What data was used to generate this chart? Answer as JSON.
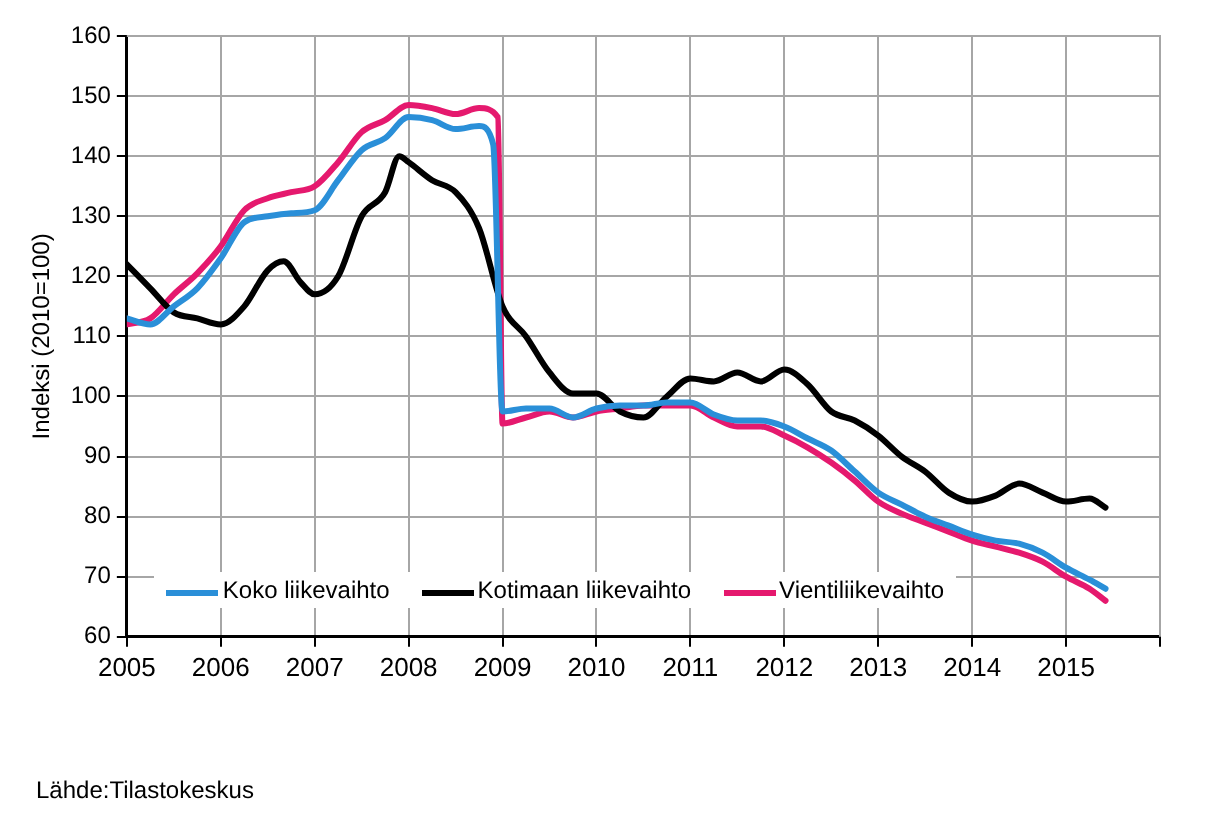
{
  "chart_data": {
    "type": "line",
    "ylabel": "Indeksi (2010=100)",
    "xlim": [
      2005,
      2016
    ],
    "xticks": [
      2005,
      2006,
      2007,
      2008,
      2009,
      2010,
      2011,
      2012,
      2013,
      2014,
      2015,
      {
        "value": 2016,
        "label": null
      }
    ],
    "ylim": [
      60,
      160
    ],
    "yticks": [
      60,
      70,
      80,
      90,
      100,
      110,
      120,
      130,
      140,
      150,
      160
    ],
    "grid": true,
    "legend": "bottom",
    "marker": "none",
    "line_style": "solid",
    "annotations": [
      "Lähde:Tilastokeskus"
    ],
    "series": [
      {
        "name": "Koko liikevaihto",
        "color": "#2a8fd8",
        "x": [
          2005,
          2005.25,
          2005.5,
          2005.75,
          2006,
          2006.25,
          2006.5,
          2006.75,
          2007,
          2007.25,
          2007.5,
          2007.75,
          2008,
          2008.25,
          2008.5,
          2008.75,
          2008.9,
          2009,
          2009.25,
          2009.5,
          2009.75,
          2010,
          2010.25,
          2010.5,
          2010.75,
          2011,
          2011.25,
          2011.5,
          2011.75,
          2012,
          2012.25,
          2012.5,
          2012.75,
          2013,
          2013.25,
          2013.5,
          2013.75,
          2014,
          2014.25,
          2014.5,
          2014.75,
          2015,
          2015.25,
          2015.42
        ],
        "values": [
          113,
          112,
          115,
          118,
          123,
          129,
          130,
          130.5,
          131,
          136,
          141,
          143,
          146.5,
          146,
          144.5,
          145,
          142,
          97.5,
          98,
          98,
          96.5,
          98,
          98.5,
          98.5,
          99,
          99,
          97,
          96,
          96,
          95,
          93,
          91,
          87.5,
          84,
          82,
          80,
          78.5,
          77,
          76,
          75.5,
          74,
          71.5,
          69.5,
          68
        ]
      },
      {
        "name": "Kotimaan liikevaihto",
        "color": "#000000",
        "x": [
          2005,
          2005.25,
          2005.5,
          2005.75,
          2006,
          2006.25,
          2006.5,
          2006.67,
          2006.85,
          2007,
          2007.25,
          2007.5,
          2007.75,
          2007.9,
          2008,
          2008.25,
          2008.5,
          2008.75,
          2009,
          2009.25,
          2009.5,
          2009.75,
          2010,
          2010.25,
          2010.5,
          2010.75,
          2011,
          2011.25,
          2011.5,
          2011.75,
          2012,
          2012.25,
          2012.5,
          2012.75,
          2013,
          2013.25,
          2013.5,
          2013.75,
          2014,
          2014.25,
          2014.5,
          2014.75,
          2015,
          2015.25,
          2015.42
        ],
        "values": [
          122,
          118,
          114,
          113,
          112,
          115,
          121,
          122.5,
          119,
          117,
          120,
          130,
          134,
          140,
          139,
          136,
          134,
          128,
          115,
          110,
          104,
          100.5,
          100.5,
          97.5,
          96.5,
          100,
          103,
          102.5,
          104,
          102.5,
          104.5,
          102,
          97.5,
          96,
          93.5,
          90,
          87.5,
          84,
          82.5,
          83.5,
          85.5,
          84,
          82.5,
          83,
          81.5
        ]
      },
      {
        "name": "Vientiliikevaihto",
        "color": "#e5196e",
        "x": [
          2005,
          2005.25,
          2005.5,
          2005.75,
          2006,
          2006.25,
          2006.5,
          2006.75,
          2007,
          2007.25,
          2007.5,
          2007.75,
          2008,
          2008.25,
          2008.5,
          2008.75,
          2008.95,
          2009,
          2009.25,
          2009.5,
          2009.75,
          2010,
          2010.25,
          2010.5,
          2010.75,
          2011,
          2011.25,
          2011.5,
          2011.75,
          2012,
          2012.25,
          2012.5,
          2012.75,
          2013,
          2013.25,
          2013.5,
          2013.75,
          2014,
          2014.25,
          2014.5,
          2014.75,
          2015,
          2015.25,
          2015.42
        ],
        "values": [
          112,
          113,
          117,
          120.5,
          125,
          131,
          133,
          134,
          135,
          139,
          144,
          146,
          148.5,
          148,
          147,
          148,
          146.5,
          95.5,
          96.5,
          97.5,
          96.5,
          97.5,
          98,
          98.5,
          98.5,
          98.5,
          96.5,
          95,
          95,
          93.5,
          91.5,
          89,
          86,
          82.5,
          80.5,
          79,
          77.5,
          76,
          75,
          74,
          72.5,
          70,
          68,
          66
        ]
      }
    ]
  }
}
